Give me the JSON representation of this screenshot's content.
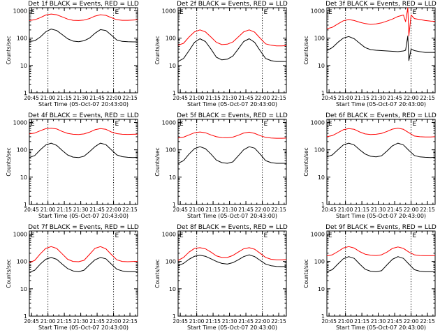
{
  "figure": {
    "background": "#ffffff",
    "axis_color": "#000000",
    "series_colors": {
      "events": "#000000",
      "lld": "#ff0000"
    },
    "x_ticks": [
      "20:45",
      "21:00",
      "21:15",
      "21:30",
      "21:45",
      "22:00",
      "22:15"
    ],
    "y_ticks": [
      "1",
      "10",
      "100",
      "1000"
    ],
    "ylabel": "Counts/sec",
    "xlabel": "Start Time (05-Oct-07 20:43:00)",
    "marker_label": "E"
  },
  "chart_data": [
    {
      "type": "line",
      "title": "Det 1f BLACK = Events, RED = LLD",
      "xlabel": "Start Time (05-Oct-07 20:43:00)",
      "ylabel": "Counts/sec",
      "x_unit": "minutes after 20:43:00",
      "xlim": [
        0,
        99
      ],
      "ylim": [
        1,
        1300
      ],
      "yscale": "log",
      "x": [
        0,
        5,
        10,
        15,
        20,
        25,
        30,
        35,
        40,
        45,
        50,
        55,
        60,
        65,
        70,
        75,
        80,
        85,
        90,
        95,
        99
      ],
      "vlines_dotted": [
        17,
        77
      ],
      "markers": [
        {
          "x": 0,
          "label": "E"
        },
        {
          "x": 77,
          "label": "E"
        }
      ],
      "series": [
        {
          "name": "BLACK = Events",
          "values": [
            75,
            80,
            110,
            170,
            215,
            190,
            135,
            95,
            78,
            74,
            80,
            100,
            150,
            205,
            190,
            130,
            85,
            76,
            74,
            73,
            73
          ]
        },
        {
          "name": "RED = LLD",
          "values": [
            440,
            470,
            560,
            700,
            760,
            720,
            600,
            500,
            450,
            440,
            460,
            520,
            640,
            720,
            680,
            560,
            470,
            450,
            450,
            460,
            470
          ]
        }
      ]
    },
    {
      "type": "line",
      "title": "Det 2f BLACK = Events, RED = LLD",
      "xlabel": "Start Time (05-Oct-07 20:43:00)",
      "ylabel": "Counts/sec",
      "x_unit": "minutes after 20:43:00",
      "xlim": [
        0,
        99
      ],
      "ylim": [
        1,
        1300
      ],
      "yscale": "log",
      "x": [
        0,
        5,
        10,
        15,
        20,
        25,
        30,
        35,
        40,
        45,
        50,
        55,
        60,
        65,
        70,
        75,
        80,
        85,
        90,
        95,
        99
      ],
      "vlines_dotted": [
        17,
        77
      ],
      "markers": [
        {
          "x": 0,
          "label": "E"
        },
        {
          "x": 77,
          "label": "E"
        }
      ],
      "series": [
        {
          "name": "BLACK = Events",
          "values": [
            14,
            18,
            35,
            70,
            95,
            75,
            40,
            20,
            16,
            17,
            22,
            40,
            75,
            95,
            70,
            35,
            18,
            15,
            14,
            14,
            14
          ]
        },
        {
          "name": "RED = LLD",
          "values": [
            55,
            65,
            110,
            170,
            200,
            170,
            110,
            70,
            58,
            60,
            72,
            110,
            170,
            200,
            165,
            100,
            62,
            55,
            52,
            52,
            53
          ]
        }
      ]
    },
    {
      "type": "line",
      "title": "Det 3f BLACK = Events, RED = LLD",
      "xlabel": "Start Time (05-Oct-07 20:43:00)",
      "ylabel": "Counts/sec",
      "x_unit": "minutes after 20:43:00",
      "xlim": [
        0,
        99
      ],
      "ylim": [
        1,
        1300
      ],
      "yscale": "log",
      "x": [
        0,
        5,
        10,
        15,
        20,
        25,
        30,
        35,
        40,
        45,
        50,
        55,
        60,
        65,
        70,
        72,
        74,
        75,
        77,
        80,
        85,
        90,
        95,
        99
      ],
      "vlines_dotted": [
        17,
        77
      ],
      "markers": [
        {
          "x": 0,
          "label": "E"
        },
        {
          "x": 77,
          "label": "E"
        }
      ],
      "series": [
        {
          "name": "BLACK = Events",
          "values": [
            35,
            45,
            70,
            100,
            115,
            95,
            65,
            45,
            38,
            36,
            35,
            34,
            33,
            32,
            34,
            36,
            120,
            15,
            40,
            35,
            32,
            30,
            30,
            30
          ]
        },
        {
          "name": "RED = LLD",
          "values": [
            220,
            250,
            330,
            430,
            480,
            440,
            380,
            340,
            320,
            330,
            360,
            420,
            500,
            620,
            700,
            400,
            1300,
            120,
            700,
            520,
            480,
            440,
            420,
            410
          ]
        }
      ]
    },
    {
      "type": "line",
      "title": "Det 4f BLACK = Events, RED = LLD",
      "xlabel": "Start Time (05-Oct-07 20:43:00)",
      "ylabel": "Counts/sec",
      "x_unit": "minutes after 20:43:00",
      "xlim": [
        0,
        99
      ],
      "ylim": [
        1,
        1300
      ],
      "yscale": "log",
      "x": [
        0,
        5,
        10,
        15,
        20,
        25,
        30,
        35,
        40,
        45,
        50,
        55,
        60,
        65,
        70,
        75,
        80,
        85,
        90,
        95,
        99
      ],
      "vlines_dotted": [
        17,
        77
      ],
      "markers": [
        {
          "x": 0,
          "label": "E"
        },
        {
          "x": 77,
          "label": "E"
        }
      ],
      "series": [
        {
          "name": "BLACK = Events",
          "values": [
            52,
            62,
            100,
            150,
            175,
            145,
            95,
            65,
            54,
            52,
            58,
            85,
            130,
            175,
            155,
            100,
            65,
            56,
            53,
            52,
            53
          ]
        },
        {
          "name": "RED = LLD",
          "values": [
            380,
            410,
            500,
            590,
            620,
            580,
            470,
            400,
            370,
            360,
            380,
            440,
            540,
            600,
            560,
            450,
            390,
            370,
            365,
            370,
            375
          ]
        }
      ]
    },
    {
      "type": "line",
      "title": "Det 5f BLACK = Events, RED = LLD",
      "xlabel": "Start Time (05-Oct-07 20:43:00)",
      "ylabel": "Counts/sec",
      "x_unit": "minutes after 20:43:00",
      "xlim": [
        0,
        99
      ],
      "ylim": [
        1,
        1300
      ],
      "yscale": "log",
      "x": [
        0,
        5,
        10,
        15,
        20,
        25,
        30,
        35,
        40,
        45,
        50,
        55,
        60,
        65,
        70,
        75,
        80,
        85,
        90,
        95,
        99
      ],
      "vlines_dotted": [
        17,
        77
      ],
      "markers": [
        {
          "x": 0,
          "label": "E"
        },
        {
          "x": 77,
          "label": "E"
        }
      ],
      "series": [
        {
          "name": "BLACK = Events",
          "values": [
            32,
            40,
            70,
            110,
            130,
            110,
            70,
            42,
            34,
            32,
            36,
            60,
            100,
            130,
            115,
            70,
            40,
            34,
            32,
            32,
            32
          ]
        },
        {
          "name": "RED = LLD",
          "values": [
            270,
            290,
            350,
            420,
            450,
            420,
            350,
            300,
            280,
            275,
            290,
            340,
            410,
            440,
            400,
            330,
            285,
            270,
            265,
            265,
            268
          ]
        }
      ]
    },
    {
      "type": "line",
      "title": "Det 6f BLACK = Events, RED = LLD",
      "xlabel": "Start Time (05-Oct-07 20:43:00)",
      "ylabel": "Counts/sec",
      "x_unit": "minutes after 20:43:00",
      "xlim": [
        0,
        99
      ],
      "ylim": [
        1,
        1300
      ],
      "yscale": "log",
      "x": [
        0,
        5,
        10,
        15,
        20,
        25,
        30,
        35,
        40,
        45,
        50,
        55,
        60,
        65,
        70,
        75,
        80,
        85,
        90,
        95,
        99
      ],
      "vlines_dotted": [
        17,
        77
      ],
      "markers": [
        {
          "x": 0,
          "label": "E"
        },
        {
          "x": 77,
          "label": "E"
        }
      ],
      "series": [
        {
          "name": "BLACK = Events",
          "values": [
            55,
            65,
            100,
            150,
            175,
            150,
            100,
            70,
            58,
            55,
            60,
            90,
            140,
            175,
            150,
            95,
            62,
            55,
            53,
            52,
            53
          ]
        },
        {
          "name": "RED = LLD",
          "values": [
            300,
            330,
            420,
            540,
            600,
            560,
            450,
            380,
            360,
            370,
            400,
            470,
            570,
            620,
            560,
            420,
            320,
            300,
            295,
            295,
            300
          ]
        }
      ]
    },
    {
      "type": "line",
      "title": "Det 7f BLACK = Events, RED = LLD",
      "xlabel": "Start Time (05-Oct-07 20:43:00)",
      "ylabel": "Counts/sec",
      "x_unit": "minutes after 20:43:00",
      "xlim": [
        0,
        99
      ],
      "ylim": [
        1,
        1300
      ],
      "yscale": "log",
      "x": [
        0,
        5,
        10,
        15,
        20,
        25,
        30,
        35,
        40,
        45,
        50,
        55,
        60,
        65,
        70,
        75,
        80,
        85,
        90,
        95,
        99
      ],
      "vlines_dotted": [
        17,
        77
      ],
      "markers": [
        {
          "x": 0,
          "label": "E"
        },
        {
          "x": 77,
          "label": "E"
        }
      ],
      "series": [
        {
          "name": "BLACK = Events",
          "values": [
            40,
            48,
            80,
            120,
            140,
            120,
            80,
            55,
            45,
            42,
            48,
            75,
            115,
            140,
            125,
            80,
            52,
            45,
            42,
            42,
            42
          ]
        },
        {
          "name": "RED = LLD",
          "values": [
            90,
            110,
            190,
            300,
            350,
            300,
            190,
            120,
            100,
            98,
            110,
            180,
            300,
            350,
            290,
            180,
            115,
            100,
            98,
            100,
            100
          ]
        }
      ]
    },
    {
      "type": "line",
      "title": "Det 8f BLACK = Events, RED = LLD",
      "xlabel": "Start Time (05-Oct-07 20:43:00)",
      "ylabel": "Counts/sec",
      "x_unit": "minutes after 20:43:00",
      "xlim": [
        0,
        99
      ],
      "ylim": [
        1,
        1300
      ],
      "yscale": "log",
      "x": [
        0,
        5,
        10,
        15,
        20,
        25,
        30,
        35,
        40,
        45,
        50,
        55,
        60,
        65,
        70,
        75,
        80,
        85,
        90,
        95,
        99
      ],
      "vlines_dotted": [
        17,
        77
      ],
      "markers": [
        {
          "x": 0,
          "label": "E"
        },
        {
          "x": 77,
          "label": "E"
        }
      ],
      "series": [
        {
          "name": "BLACK = Events",
          "values": [
            70,
            85,
            120,
            155,
            170,
            155,
            125,
            100,
            85,
            80,
            90,
            115,
            150,
            175,
            150,
            110,
            80,
            70,
            66,
            65,
            66
          ]
        },
        {
          "name": "RED = LLD",
          "values": [
            110,
            140,
            220,
            300,
            320,
            290,
            220,
            160,
            140,
            140,
            165,
            220,
            290,
            320,
            280,
            200,
            140,
            120,
            115,
            115,
            118
          ]
        }
      ]
    },
    {
      "type": "line",
      "title": "Det 9f BLACK = Events, RED = LLD",
      "xlabel": "Start Time (05-Oct-07 20:43:00)",
      "ylabel": "Counts/sec",
      "x_unit": "minutes after 20:43:00",
      "xlim": [
        0,
        99
      ],
      "ylim": [
        1,
        1300
      ],
      "yscale": "log",
      "x": [
        0,
        5,
        10,
        15,
        20,
        25,
        30,
        35,
        40,
        45,
        50,
        55,
        60,
        65,
        70,
        75,
        80,
        85,
        90,
        95,
        99
      ],
      "vlines_dotted": [
        17,
        77
      ],
      "markers": [
        {
          "x": 0,
          "label": "E"
        },
        {
          "x": 77,
          "label": "E"
        }
      ],
      "series": [
        {
          "name": "BLACK = Events",
          "values": [
            42,
            50,
            80,
            125,
            150,
            130,
            80,
            52,
            44,
            42,
            46,
            75,
            120,
            150,
            130,
            80,
            50,
            44,
            42,
            42,
            42
          ]
        },
        {
          "name": "RED = LLD",
          "values": [
            160,
            175,
            230,
            310,
            350,
            310,
            230,
            185,
            170,
            165,
            175,
            220,
            300,
            340,
            300,
            220,
            175,
            165,
            162,
            162,
            165
          ]
        }
      ]
    }
  ]
}
